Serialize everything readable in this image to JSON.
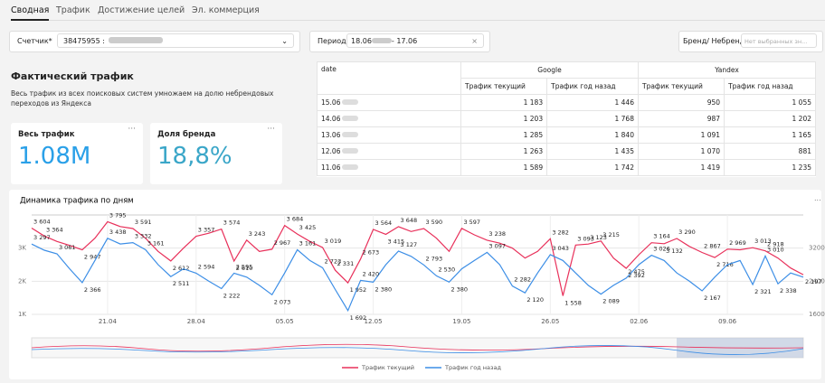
{
  "tabs": [
    "Сводная",
    "Трафик",
    "Достижение целей",
    "Эл. коммерция"
  ],
  "filters": {
    "counter": {
      "label": "Счетчик*",
      "value": "38475955 :"
    },
    "period": {
      "label": "Период",
      "from": "18.06",
      "to": "- 17.06"
    },
    "brand": {
      "label": "Бренд/ Небренд",
      "placeholder": "Нет выбранных зн..."
    }
  },
  "summary": {
    "title": "Фактический трафик",
    "text": "Весь трафик из всех поисковых систем умножаем на долю небрендовых переходов из Яндекса"
  },
  "kpis": [
    {
      "label": "Весь трафик",
      "value": "1.08M"
    },
    {
      "label": "Доля бренда",
      "value": "18,8%"
    }
  ],
  "table": {
    "columns": [
      "date",
      "Google",
      "Yandex"
    ],
    "subheaders": [
      "Трафик текущий",
      "Трафик год назад",
      "Трафик текущий",
      "Трафик год назад"
    ],
    "rows": [
      [
        "15.06",
        "1 183",
        "1 446",
        "950",
        "1 055"
      ],
      [
        "14.06",
        "1 203",
        "1 768",
        "987",
        "1 202"
      ],
      [
        "13.06",
        "1 285",
        "1 840",
        "1 091",
        "1 165"
      ],
      [
        "12.06",
        "1 263",
        "1 435",
        "1 070",
        "881"
      ],
      [
        "11.06",
        "1 589",
        "1 742",
        "1 419",
        "1 235"
      ]
    ]
  },
  "chart_data": {
    "type": "line",
    "title": "Динамика трафика по дням",
    "categories": [
      null,
      null,
      null,
      null,
      null,
      null,
      "21.04",
      null,
      null,
      null,
      null,
      null,
      null,
      "28.04",
      null,
      null,
      null,
      null,
      null,
      null,
      "05.05",
      null,
      null,
      null,
      null,
      null,
      null,
      "12.05",
      null,
      null,
      null,
      null,
      null,
      null,
      "19.05",
      null,
      null,
      null,
      null,
      null,
      null,
      "26.05",
      null,
      null,
      null,
      null,
      null,
      null,
      "02.06",
      null,
      null,
      null,
      null,
      null,
      null,
      "09.06",
      null,
      null,
      null,
      null,
      null,
      null
    ],
    "ylim": [
      1000,
      4000
    ],
    "yticks": [
      {
        "value": 1000,
        "label": "1K"
      },
      {
        "value": 2000,
        "label": "2K"
      },
      {
        "value": 3000,
        "label": "3K"
      }
    ],
    "y2lim": [
      1600,
      4000
    ],
    "y2ticks": [
      1600,
      2400,
      3200
    ],
    "grid": true,
    "legend": "bottom",
    "series": [
      {
        "name": "Трафик текущий",
        "color": "#e8305a",
        "values": [
          3604,
          3364,
          3200,
          3080,
          2947,
          3300,
          3795,
          3650,
          3591,
          3300,
          2900,
          2612,
          3000,
          3357,
          3450,
          3574,
          2610,
          3243,
          2900,
          2967,
          3684,
          3425,
          3200,
          3019,
          2331,
          1952,
          2673,
          3564,
          3415,
          3648,
          3500,
          3590,
          3300,
          2900,
          3597,
          3400,
          3238,
          3150,
          3000,
          2700,
          2900,
          3282,
          1558,
          3093,
          3123,
          3215,
          2700,
          2392,
          2800,
          3164,
          3132,
          3290,
          3050,
          2867,
          2716,
          2969,
          2950,
          3013,
          2918,
          2700,
          2400,
          2197
        ],
        "value_labels": [
          "3 604",
          "3 364",
          null,
          null,
          "2 947",
          null,
          "3 795",
          null,
          "3 591",
          null,
          null,
          "2 612",
          null,
          "3 357",
          null,
          "3 574",
          "2 610",
          "3 243",
          null,
          "2 967",
          "3 684",
          "3 425",
          null,
          "3 019",
          "2 331",
          "1 952",
          "2 673",
          "3 564",
          "3 415",
          "3 648",
          null,
          "3 590",
          null,
          null,
          "3 597",
          null,
          "3 238",
          null,
          null,
          null,
          null,
          "3 282",
          "1 558",
          "3 093",
          "3 123",
          "3 215",
          null,
          "2 392",
          null,
          "3 164",
          "3 132",
          "3 290",
          null,
          "2 867",
          "2 716",
          "2 969",
          null,
          "3 013",
          "2 918",
          null,
          null,
          "2 197"
        ]
      },
      {
        "name": "Трафик год назад",
        "color": "#3c8ee6",
        "axis": "y2",
        "values": [
          3297,
          3150,
          3061,
          2700,
          2366,
          2900,
          3438,
          3300,
          3332,
          3161,
          2800,
          2511,
          2700,
          2594,
          2400,
          2222,
          2595,
          2500,
          2300,
          2073,
          2600,
          3161,
          2900,
          2723,
          2200,
          1692,
          2420,
          2380,
          2800,
          3127,
          3000,
          2793,
          2530,
          2380,
          2700,
          2900,
          3097,
          2800,
          2282,
          2120,
          2600,
          3043,
          2900,
          2600,
          2300,
          2089,
          2300,
          2475,
          2800,
          3026,
          2900,
          2600,
          2400,
          2167,
          2500,
          2800,
          2900,
          2321,
          3010,
          2338,
          2600,
          2500
        ],
        "value_labels": [
          "3 297",
          null,
          "3 061",
          null,
          "2 366",
          null,
          "3 438",
          null,
          "3 332",
          "3 161",
          null,
          "2 511",
          null,
          "2 594",
          null,
          "2 222",
          "2 595",
          null,
          null,
          "2 073",
          null,
          "3 161",
          null,
          "2 723",
          null,
          "1 692",
          "2 420",
          "2 380",
          null,
          "3 127",
          null,
          "2 793",
          "2 530",
          "2 380",
          null,
          null,
          "3 097",
          null,
          "2 282",
          "2 120",
          null,
          "3 043",
          null,
          null,
          null,
          "2 089",
          null,
          "2 475",
          null,
          "3 026",
          null,
          null,
          null,
          "2 167",
          null,
          null,
          null,
          "2 321",
          "3 010",
          "2 338",
          null,
          null
        ]
      }
    ]
  }
}
